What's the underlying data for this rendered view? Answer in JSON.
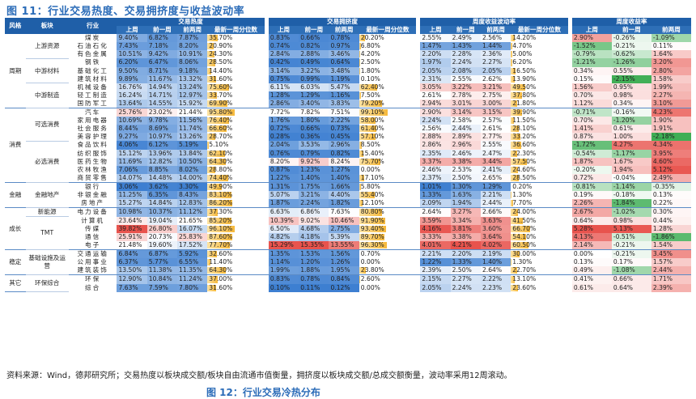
{
  "figure_title": "图 11：行业交易热度、交易拥挤度与收益波动率",
  "headers": {
    "style": "风格",
    "sector": "板块",
    "industry": "行业",
    "groups": [
      "交易热度",
      "交易拥挤度",
      "周度收益波动率",
      "周度收益率"
    ],
    "cols": [
      "上周",
      "前一周",
      "前两周",
      "最新一周分位数"
    ],
    "ret_cols": [
      "上周",
      "前一周",
      "前两周"
    ]
  },
  "rows": [
    {
      "style": "周期",
      "sector": "上游资源",
      "ind": "煤炭",
      "h": [
        "9.40%",
        "6.82%",
        "7.87%",
        "35.70%"
      ],
      "hp": 35.7,
      "c": [
        "0.83%",
        "0.66%",
        "0.78%",
        "20.20%"
      ],
      "cp": 20.2,
      "v": [
        "2.55%",
        "2.49%",
        "2.56%",
        "14.20%"
      ],
      "vp": 14.2,
      "r": [
        "2.90%",
        "-0.26%",
        "-1.09%"
      ]
    },
    {
      "style": "",
      "sector": "",
      "ind": "石油石化",
      "h": [
        "7.43%",
        "7.18%",
        "8.20%",
        "20.90%"
      ],
      "hp": 20.9,
      "c": [
        "0.74%",
        "0.82%",
        "0.97%",
        "6.80%"
      ],
      "cp": 6.8,
      "v": [
        "1.47%",
        "1.43%",
        "1.44%",
        "4.70%"
      ],
      "vp": 4.7,
      "r": [
        "-1.52%",
        "-0.21%",
        "0.11%"
      ]
    },
    {
      "style": "",
      "sector": "",
      "ind": "有色金属",
      "h": [
        "10.51%",
        "9.42%",
        "10.91%",
        "24.30%"
      ],
      "hp": 24.3,
      "c": [
        "2.84%",
        "2.88%",
        "3.46%",
        "4.20%"
      ],
      "cp": 4.2,
      "v": [
        "2.20%",
        "2.28%",
        "2.36%",
        "5.00%"
      ],
      "vp": 5.0,
      "r": [
        "-0.79%",
        "-0.62%",
        "1.64%"
      ]
    },
    {
      "style": "",
      "sector": "中游材料",
      "ind": "钢铁",
      "h": [
        "6.20%",
        "6.47%",
        "8.06%",
        "28.50%"
      ],
      "hp": 28.5,
      "c": [
        "0.42%",
        "0.49%",
        "0.64%",
        "2.50%"
      ],
      "cp": 2.5,
      "v": [
        "1.97%",
        "2.24%",
        "2.27%",
        "6.20%"
      ],
      "vp": 6.2,
      "r": [
        "-1.21%",
        "-1.26%",
        "3.20%"
      ]
    },
    {
      "style": "",
      "sector": "",
      "ind": "基础化工",
      "h": [
        "9.50%",
        "8.71%",
        "9.18%",
        "14.40%"
      ],
      "hp": 14.4,
      "c": [
        "3.14%",
        "3.22%",
        "3.48%",
        "1.80%"
      ],
      "cp": 1.8,
      "v": [
        "2.05%",
        "2.08%",
        "2.05%",
        "16.50%"
      ],
      "vp": 16.5,
      "r": [
        "0.34%",
        "0.55%",
        "2.80%"
      ]
    },
    {
      "style": "",
      "sector": "",
      "ind": "建筑材料",
      "h": [
        "9.89%",
        "11.67%",
        "13.32%",
        "31.60%"
      ],
      "hp": 31.6,
      "c": [
        "0.75%",
        "0.99%",
        "1.19%",
        "0.10%"
      ],
      "cp": 0.1,
      "v": [
        "2.31%",
        "2.55%",
        "2.62%",
        "13.90%"
      ],
      "vp": 13.9,
      "r": [
        "0.15%",
        "-2.15%",
        "1.58%"
      ]
    },
    {
      "style": "",
      "sector": "中游制造",
      "ind": "机械设备",
      "h": [
        "16.76%",
        "14.94%",
        "13.24%",
        "75.60%"
      ],
      "hp": 75.6,
      "c": [
        "6.11%",
        "6.03%",
        "5.47%",
        "62.40%"
      ],
      "cp": 62.4,
      "v": [
        "3.05%",
        "3.22%",
        "3.21%",
        "49.50%"
      ],
      "vp": 49.5,
      "r": [
        "1.56%",
        "0.95%",
        "1.99%"
      ]
    },
    {
      "style": "",
      "sector": "",
      "ind": "轻工制造",
      "h": [
        "16.24%",
        "14.71%",
        "12.97%",
        "33.70%"
      ],
      "hp": 33.7,
      "c": [
        "1.28%",
        "1.29%",
        "1.16%",
        "7.50%"
      ],
      "cp": 7.5,
      "v": [
        "2.61%",
        "2.78%",
        "2.75%",
        "37.80%"
      ],
      "vp": 37.8,
      "r": [
        "0.70%",
        "0.98%",
        "2.27%"
      ]
    },
    {
      "style": "",
      "sector": "",
      "ind": "国防军工",
      "h": [
        "13.64%",
        "14.55%",
        "15.92%",
        "69.90%"
      ],
      "hp": 69.9,
      "c": [
        "2.86%",
        "3.40%",
        "3.83%",
        "79.20%"
      ],
      "cp": 79.2,
      "v": [
        "2.94%",
        "3.01%",
        "3.00%",
        "21.80%"
      ],
      "vp": 21.8,
      "r": [
        "1.12%",
        "0.34%",
        "3.10%"
      ]
    },
    {
      "style": "消费",
      "sector": "可选消费",
      "ind": "汽车",
      "h": [
        "25.76%",
        "23.02%",
        "21.44%",
        "95.80%"
      ],
      "hp": 95.8,
      "c": [
        "7.72%",
        "7.82%",
        "7.51%",
        "99.10%"
      ],
      "cp": 99.1,
      "v": [
        "2.90%",
        "3.14%",
        "3.15%",
        "39.90%"
      ],
      "vp": 39.9,
      "r": [
        "-0.71%",
        "-0.16%",
        "4.23%"
      ]
    },
    {
      "style": "",
      "sector": "",
      "ind": "家用电器",
      "h": [
        "10.69%",
        "9.78%",
        "11.56%",
        "76.40%"
      ],
      "hp": 76.4,
      "c": [
        "1.76%",
        "1.80%",
        "2.22%",
        "58.00%"
      ],
      "cp": 58.0,
      "v": [
        "2.24%",
        "2.58%",
        "2.57%",
        "11.50%"
      ],
      "vp": 11.5,
      "r": [
        "0.70%",
        "-1.20%",
        "1.90%"
      ]
    },
    {
      "style": "",
      "sector": "",
      "ind": "社会服务",
      "h": [
        "8.44%",
        "8.69%",
        "11.74%",
        "66.60%"
      ],
      "hp": 66.6,
      "c": [
        "0.72%",
        "0.66%",
        "0.73%",
        "61.40%"
      ],
      "cp": 61.4,
      "v": [
        "2.56%",
        "2.44%",
        "2.61%",
        "28.10%"
      ],
      "vp": 28.1,
      "r": [
        "1.41%",
        "0.61%",
        "1.91%"
      ]
    },
    {
      "style": "",
      "sector": "",
      "ind": "美容护理",
      "h": [
        "9.27%",
        "10.97%",
        "13.26%",
        "28.70%"
      ],
      "hp": 28.7,
      "c": [
        "0.28%",
        "0.36%",
        "0.45%",
        "57.10%"
      ],
      "cp": 57.1,
      "v": [
        "2.88%",
        "2.89%",
        "2.77%",
        "33.20%"
      ],
      "vp": 33.2,
      "r": [
        "0.87%",
        "1.00%",
        "-2.18%"
      ]
    },
    {
      "style": "",
      "sector": "必选消费",
      "ind": "食品饮料",
      "h": [
        "4.06%",
        "6.12%",
        "5.19%",
        "5.10%"
      ],
      "hp": 5.1,
      "c": [
        "2.04%",
        "3.53%",
        "2.96%",
        "8.50%"
      ],
      "cp": 8.5,
      "v": [
        "2.86%",
        "2.96%",
        "2.55%",
        "36.60%"
      ],
      "vp": 36.6,
      "r": [
        "-1.72%",
        "4.27%",
        "4.34%"
      ]
    },
    {
      "style": "",
      "sector": "",
      "ind": "纺织服饰",
      "h": [
        "15.12%",
        "13.96%",
        "13.84%",
        "62.10%"
      ],
      "hp": 62.1,
      "c": [
        "0.76%",
        "0.79%",
        "0.82%",
        "15.40%"
      ],
      "cp": 15.4,
      "v": [
        "2.35%",
        "2.46%",
        "2.47%",
        "22.30%"
      ],
      "vp": 22.3,
      "r": [
        "-0.54%",
        "-1.17%",
        "3.95%"
      ]
    },
    {
      "style": "",
      "sector": "",
      "ind": "医药生物",
      "h": [
        "11.69%",
        "12.82%",
        "10.50%",
        "64.30%"
      ],
      "hp": 64.3,
      "c": [
        "8.20%",
        "9.92%",
        "8.24%",
        "75.70%"
      ],
      "cp": 75.7,
      "v": [
        "3.37%",
        "3.38%",
        "3.44%",
        "57.50%"
      ],
      "vp": 57.5,
      "r": [
        "1.87%",
        "1.67%",
        "4.60%"
      ]
    },
    {
      "style": "",
      "sector": "",
      "ind": "农林牧渔",
      "h": [
        "7.06%",
        "8.85%",
        "8.02%",
        "28.80%"
      ],
      "hp": 28.8,
      "c": [
        "0.87%",
        "1.23%",
        "1.27%",
        "0.00%"
      ],
      "cp": 0.0,
      "v": [
        "2.46%",
        "2.53%",
        "2.41%",
        "24.60%"
      ],
      "vp": 24.6,
      "r": [
        "-0.20%",
        "1.94%",
        "5.12%"
      ]
    },
    {
      "style": "",
      "sector": "",
      "ind": "商贸零售",
      "h": [
        "14.07%",
        "14.48%",
        "14.00%",
        "74.40%"
      ],
      "hp": 74.4,
      "c": [
        "1.22%",
        "1.40%",
        "1.40%",
        "17.10%"
      ],
      "cp": 17.1,
      "v": [
        "2.37%",
        "2.50%",
        "2.65%",
        "28.50%"
      ],
      "vp": 28.5,
      "r": [
        "0.72%",
        "-0.04%",
        "2.49%"
      ]
    },
    {
      "style": "金融",
      "sector": "金融地产",
      "ind": "银行",
      "h": [
        "3.06%",
        "3.62%",
        "3.30%",
        "49.90%"
      ],
      "hp": 49.9,
      "c": [
        "1.31%",
        "1.75%",
        "1.66%",
        "5.80%"
      ],
      "cp": 5.8,
      "v": [
        "1.01%",
        "1.30%",
        "1.29%",
        "0.20%"
      ],
      "vp": 0.2,
      "r": [
        "-0.81%",
        "-1.14%",
        "-0.35%"
      ]
    },
    {
      "style": "",
      "sector": "",
      "ind": "非银金融",
      "h": [
        "11.25%",
        "6.35%",
        "8.43%",
        "83.10%"
      ],
      "hp": 83.1,
      "c": [
        "5.07%",
        "3.21%",
        "4.40%",
        "55.40%"
      ],
      "cp": 55.4,
      "v": [
        "1.33%",
        "1.63%",
        "2.21%",
        "1.30%"
      ],
      "vp": 1.3,
      "r": [
        "0.19%",
        "-0.18%",
        "0.13%"
      ]
    },
    {
      "style": "",
      "sector": "",
      "ind": "房地产",
      "h": [
        "15.27%",
        "14.84%",
        "12.83%",
        "86.20%"
      ],
      "hp": 86.2,
      "c": [
        "1.87%",
        "2.24%",
        "1.82%",
        "12.10%"
      ],
      "cp": 12.1,
      "v": [
        "2.09%",
        "1.94%",
        "2.44%",
        "7.70%"
      ],
      "vp": 7.7,
      "r": [
        "2.26%",
        "-1.84%",
        "0.22%"
      ]
    },
    {
      "style": "成长",
      "sector": "新能源",
      "ind": "电力设备",
      "h": [
        "10.98%",
        "10.37%",
        "11.12%",
        "37.30%"
      ],
      "hp": 37.3,
      "c": [
        "6.63%",
        "6.86%",
        "7.63%",
        "80.80%"
      ],
      "cp": 80.8,
      "v": [
        "2.64%",
        "3.27%",
        "2.66%",
        "24.00%"
      ],
      "vp": 24.0,
      "r": [
        "2.67%",
        "-1.02%",
        "0.30%"
      ]
    },
    {
      "style": "",
      "sector": "TMT",
      "ind": "计算机",
      "h": [
        "23.64%",
        "19.04%",
        "21.65%",
        "85.20%"
      ],
      "hp": 85.2,
      "c": [
        "10.39%",
        "9.02%",
        "10.46%",
        "91.90%"
      ],
      "cp": 91.9,
      "v": [
        "3.59%",
        "3.34%",
        "3.63%",
        "41.50%"
      ],
      "vp": 41.5,
      "r": [
        "0.64%",
        "0.98%",
        "0.44%"
      ]
    },
    {
      "style": "",
      "sector": "",
      "ind": "传媒",
      "h": [
        "39.82%",
        "26.80%",
        "16.07%",
        "96.10%"
      ],
      "hp": 96.1,
      "c": [
        "6.50%",
        "4.68%",
        "2.75%",
        "93.40%"
      ],
      "cp": 93.4,
      "v": [
        "4.16%",
        "3.81%",
        "3.60%",
        "66.70%"
      ],
      "vp": 66.7,
      "r": [
        "5.28%",
        "5.13%",
        "1.28%"
      ]
    },
    {
      "style": "",
      "sector": "",
      "ind": "通信",
      "h": [
        "25.91%",
        "20.73%",
        "25.83%",
        "87.60%"
      ],
      "hp": 87.6,
      "c": [
        "4.82%",
        "4.18%",
        "5.39%",
        "89.70%"
      ],
      "cp": 89.7,
      "v": [
        "3.33%",
        "3.38%",
        "3.64%",
        "54.10%"
      ],
      "vp": 54.1,
      "r": [
        "4.13%",
        "-0.51%",
        "-1.86%"
      ]
    },
    {
      "style": "",
      "sector": "",
      "ind": "电子",
      "h": [
        "21.48%",
        "19.60%",
        "17.52%",
        "77.70%"
      ],
      "hp": 77.7,
      "c": [
        "15.29%",
        "15.35%",
        "13.55%",
        "96.30%"
      ],
      "cp": 96.3,
      "v": [
        "4.01%",
        "4.21%",
        "4.02%",
        "60.50%"
      ],
      "vp": 60.5,
      "r": [
        "2.14%",
        "-0.21%",
        "1.54%"
      ]
    },
    {
      "style": "稳定",
      "sector": "基础设施及运营",
      "ind": "交通运输",
      "h": [
        "6.84%",
        "6.87%",
        "5.92%",
        "32.60%"
      ],
      "hp": 32.6,
      "c": [
        "1.35%",
        "1.53%",
        "1.56%",
        "0.70%"
      ],
      "cp": 0.7,
      "v": [
        "2.21%",
        "2.20%",
        "2.19%",
        "30.00%"
      ],
      "vp": 30.0,
      "r": [
        "0.00%",
        "-0.21%",
        "3.45%"
      ]
    },
    {
      "style": "",
      "sector": "",
      "ind": "公用事业",
      "h": [
        "6.37%",
        "5.77%",
        "6.55%",
        "11.40%"
      ],
      "hp": 11.4,
      "c": [
        "1.14%",
        "1.20%",
        "1.26%",
        "0.00%"
      ],
      "cp": 0.0,
      "v": [
        "1.22%",
        "1.33%",
        "1.40%",
        "1.30%"
      ],
      "vp": 1.3,
      "r": [
        "0.13%",
        "0.17%",
        "1.57%"
      ]
    },
    {
      "style": "",
      "sector": "",
      "ind": "建筑装饰",
      "h": [
        "13.50%",
        "11.38%",
        "11.35%",
        "64.30%"
      ],
      "hp": 64.3,
      "c": [
        "1.99%",
        "1.88%",
        "1.95%",
        "23.80%"
      ],
      "cp": 23.8,
      "v": [
        "2.39%",
        "2.50%",
        "2.64%",
        "22.70%"
      ],
      "vp": 22.7,
      "r": [
        "0.49%",
        "-1.08%",
        "2.44%"
      ]
    },
    {
      "style": "其它",
      "sector": "环保综合",
      "ind": "环保",
      "h": [
        "12.90%",
        "10.84%",
        "11.24%",
        "37.00%"
      ],
      "hp": 37.0,
      "c": [
        "0.83%",
        "0.78%",
        "0.84%",
        "2.60%"
      ],
      "cp": 2.6,
      "v": [
        "2.15%",
        "2.27%",
        "2.22%",
        "13.10%"
      ],
      "vp": 13.1,
      "r": [
        "0.41%",
        "0.66%",
        "1.71%"
      ]
    },
    {
      "style": "",
      "sector": "",
      "ind": "综合",
      "h": [
        "7.63%",
        "7.59%",
        "7.80%",
        "31.60%"
      ],
      "hp": 31.6,
      "c": [
        "0.10%",
        "0.11%",
        "0.12%",
        "0.00%"
      ],
      "cp": 0.0,
      "v": [
        "2.05%",
        "2.24%",
        "2.23%",
        "23.60%"
      ],
      "vp": 23.6,
      "r": [
        "0.61%",
        "0.64%",
        "2.39%"
      ]
    }
  ],
  "spans": {
    "style": [
      {
        "label": "周期",
        "start": 0,
        "n": 9
      },
      {
        "label": "消费",
        "start": 9,
        "n": 9
      },
      {
        "label": "金融",
        "start": 18,
        "n": 3
      },
      {
        "label": "成长",
        "start": 21,
        "n": 5
      },
      {
        "label": "稳定",
        "start": 26,
        "n": 3
      },
      {
        "label": "其它",
        "start": 29,
        "n": 2
      }
    ],
    "sector": [
      {
        "label": "上游资源",
        "start": 0,
        "n": 3
      },
      {
        "label": "中游材料",
        "start": 3,
        "n": 3
      },
      {
        "label": "中游制造",
        "start": 6,
        "n": 3
      },
      {
        "label": "可选消费",
        "start": 9,
        "n": 4
      },
      {
        "label": "必选消费",
        "start": 13,
        "n": 5
      },
      {
        "label": "金融地产",
        "start": 18,
        "n": 3
      },
      {
        "label": "新能源",
        "start": 21,
        "n": 1
      },
      {
        "label": "TMT",
        "start": 22,
        "n": 4
      },
      {
        "label": "基础设施及运营",
        "start": 26,
        "n": 3
      },
      {
        "label": "环保综合",
        "start": 29,
        "n": 2
      }
    ]
  },
  "source_note": "资料来源：Wind，德邦研究所；交易热度以板块成交额/板块自由流通市值衡量，拥挤度以板块成交额/总成交额衡量，波动率采用12周滚动。",
  "next_figure_title": "图 12：行业交易冷热分布",
  "colors": {
    "header": "#1f5fa8",
    "bar": "#f5b83a",
    "red": "#e8534d",
    "blue": "#3d7fd1",
    "green": "#3fae55"
  }
}
